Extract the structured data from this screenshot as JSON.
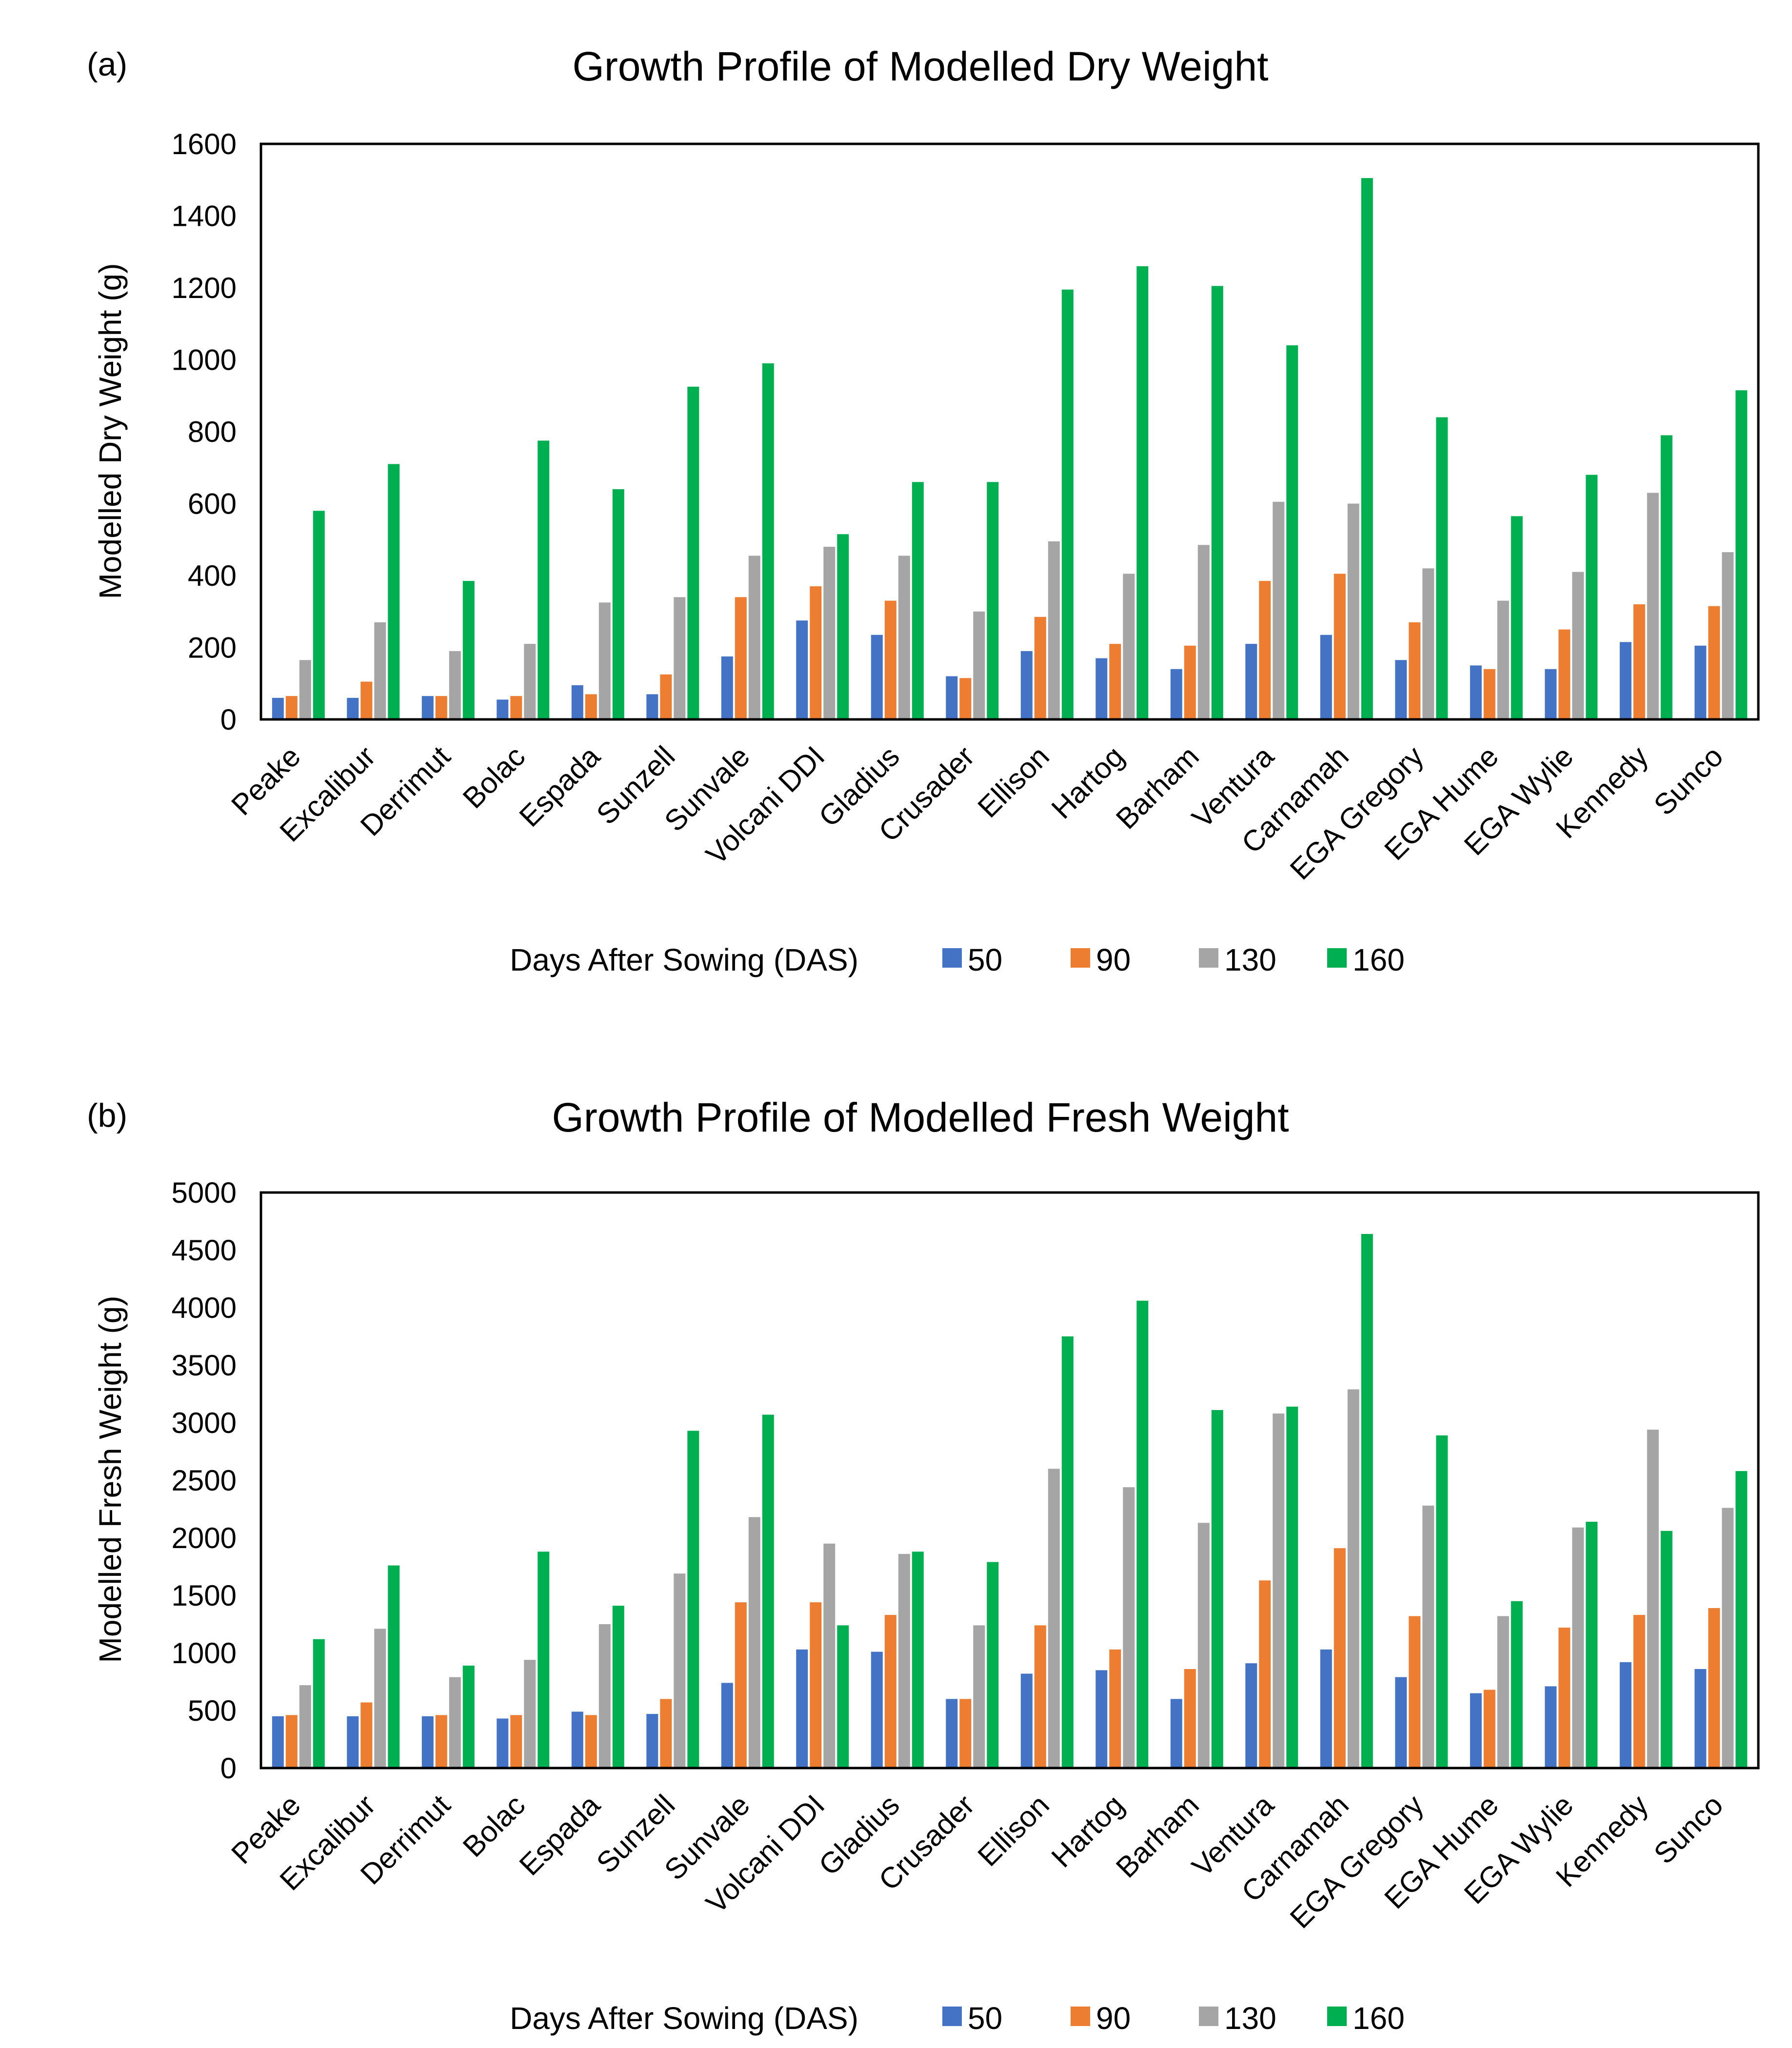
{
  "chart_data": [
    {
      "panel_label": "(a)",
      "type": "bar",
      "title": "Growth Profile of Modelled Dry Weight",
      "xlabel": "",
      "ylabel": "Modelled Dry Weight (g)",
      "ylim": [
        0,
        1600
      ],
      "yticks": [
        "0",
        "200",
        "400",
        "600",
        "800",
        "1000",
        "1200",
        "1400",
        "1600"
      ],
      "grid": false,
      "legend_placement": "bottom",
      "legend_title": "Days After Sowing (DAS)",
      "categories": [
        "Peake",
        "Excalibur",
        "Derrimut",
        "Bolac",
        "Espada",
        "Sunzell",
        "Sunvale",
        "Volcani DDI",
        "Gladius",
        "Crusader",
        "Ellison",
        "Hartog",
        "Barham",
        "Ventura",
        "Carnamah",
        "EGA Gregory",
        "EGA Hume",
        "EGA Wylie",
        "Kennedy",
        "Sunco"
      ],
      "series": [
        {
          "name": "50",
          "color": "#4472C4",
          "values": [
            60,
            60,
            65,
            55,
            95,
            70,
            175,
            275,
            235,
            120,
            190,
            170,
            140,
            210,
            235,
            165,
            150,
            140,
            215,
            205
          ]
        },
        {
          "name": "90",
          "color": "#ED7D31",
          "values": [
            65,
            105,
            65,
            65,
            70,
            125,
            340,
            370,
            330,
            115,
            285,
            210,
            205,
            385,
            405,
            270,
            140,
            250,
            320,
            315
          ]
        },
        {
          "name": "130",
          "color": "#A5A5A5",
          "values": [
            165,
            270,
            190,
            210,
            325,
            340,
            455,
            480,
            455,
            300,
            495,
            405,
            485,
            605,
            600,
            420,
            330,
            410,
            630,
            465
          ]
        },
        {
          "name": "160",
          "color": "#00B050",
          "values": [
            580,
            710,
            385,
            775,
            640,
            925,
            990,
            515,
            660,
            660,
            1195,
            1260,
            1205,
            1040,
            1505,
            840,
            565,
            680,
            790,
            915
          ]
        }
      ]
    },
    {
      "panel_label": "(b)",
      "type": "bar",
      "title": "Growth Profile of Modelled Fresh Weight",
      "xlabel": "",
      "ylabel": "Modelled Fresh Weight (g)",
      "ylim": [
        0,
        5000
      ],
      "yticks": [
        "0",
        "500",
        "1000",
        "1500",
        "2000",
        "2500",
        "3000",
        "3500",
        "4000",
        "4500",
        "5000"
      ],
      "grid": false,
      "legend_placement": "bottom",
      "legend_title": "Days After Sowing (DAS)",
      "categories": [
        "Peake",
        "Excalibur",
        "Derrimut",
        "Bolac",
        "Espada",
        "Sunzell",
        "Sunvale",
        "Volcani DDI",
        "Gladius",
        "Crusader",
        "Ellison",
        "Hartog",
        "Barham",
        "Ventura",
        "Carnamah",
        "EGA Gregory",
        "EGA Hume",
        "EGA Wylie",
        "Kennedy",
        "Sunco"
      ],
      "series": [
        {
          "name": "50",
          "color": "#4472C4",
          "values": [
            450,
            450,
            450,
            430,
            490,
            470,
            740,
            1030,
            1010,
            600,
            820,
            850,
            600,
            910,
            1030,
            790,
            650,
            710,
            920,
            860
          ]
        },
        {
          "name": "90",
          "color": "#ED7D31",
          "values": [
            460,
            570,
            460,
            460,
            460,
            600,
            1440,
            1440,
            1330,
            600,
            1240,
            1030,
            860,
            1630,
            1910,
            1320,
            680,
            1220,
            1330,
            1390
          ]
        },
        {
          "name": "130",
          "color": "#A5A5A5",
          "values": [
            720,
            1210,
            790,
            940,
            1250,
            1690,
            2180,
            1950,
            1860,
            1240,
            2600,
            2440,
            2130,
            3080,
            3290,
            2280,
            1320,
            2090,
            2940,
            2260
          ]
        },
        {
          "name": "160",
          "color": "#00B050",
          "values": [
            1120,
            1760,
            890,
            1880,
            1410,
            2930,
            3070,
            1240,
            1880,
            1790,
            3750,
            4060,
            3110,
            3140,
            4640,
            2890,
            1450,
            2140,
            2060,
            2580
          ]
        }
      ]
    }
  ]
}
